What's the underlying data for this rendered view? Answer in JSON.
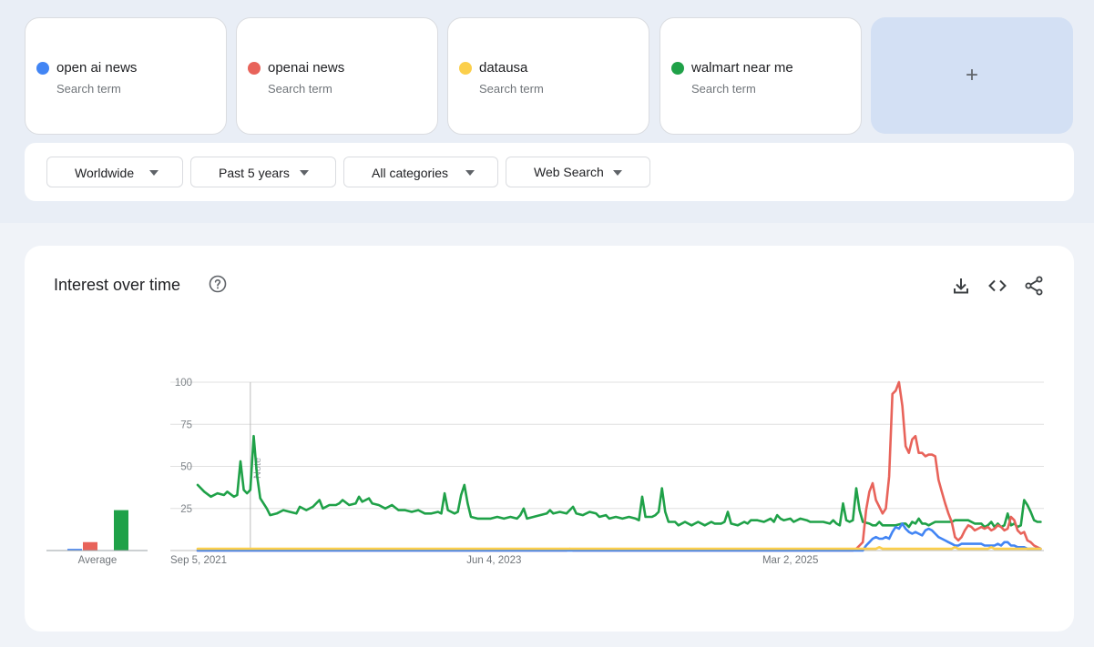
{
  "search_terms": [
    {
      "name": "open ai news",
      "sub": "Search term",
      "color": "#4285f4"
    },
    {
      "name": "openai news",
      "sub": "Search term",
      "color": "#e8635a"
    },
    {
      "name": "datausa",
      "sub": "Search term",
      "color": "#fbcf4b"
    },
    {
      "name": "walmart near me",
      "sub": "Search term",
      "color": "#1fa148"
    }
  ],
  "add_term": {
    "icon": "plus-icon",
    "label": "+"
  },
  "filters": {
    "region": "Worldwide",
    "time_range": "Past 5 years",
    "category": "All categories",
    "search_type": "Web Search"
  },
  "panel": {
    "title": "Interest over time",
    "help_icon": "help-circle-icon",
    "tools": [
      "download-icon",
      "embed-code-icon",
      "share-icon"
    ]
  },
  "chart_data": {
    "type": "line",
    "title": "Interest over time",
    "ylim": [
      0,
      100
    ],
    "yticks": [
      100,
      75,
      50,
      25
    ],
    "xtick_labels": [
      "Sep 5, 2021",
      "Jun 4, 2023",
      "Mar 2, 2025"
    ],
    "xtick_positions": [
      0,
      90,
      180
    ],
    "xlim": [
      0,
      257
    ],
    "grid": true,
    "annotation": {
      "label": "Note",
      "x": 16
    },
    "average": {
      "label": "Average",
      "values": [
        1,
        5,
        24
      ]
    },
    "series": [
      {
        "name": "walmart near me",
        "color": "#1fa148",
        "points": [
          [
            0,
            39
          ],
          [
            2,
            35
          ],
          [
            4,
            32
          ],
          [
            6,
            34
          ],
          [
            8,
            33
          ],
          [
            9,
            35
          ],
          [
            11,
            32
          ],
          [
            12,
            33
          ],
          [
            13,
            53
          ],
          [
            14,
            36
          ],
          [
            15,
            34
          ],
          [
            16,
            36
          ],
          [
            17,
            68
          ],
          [
            18,
            45
          ],
          [
            19,
            31
          ],
          [
            20,
            28
          ],
          [
            21,
            25
          ],
          [
            22,
            21
          ],
          [
            24,
            22
          ],
          [
            26,
            24
          ],
          [
            28,
            23
          ],
          [
            30,
            22
          ],
          [
            31,
            26
          ],
          [
            33,
            24
          ],
          [
            35,
            26
          ],
          [
            37,
            30
          ],
          [
            38,
            25
          ],
          [
            40,
            27
          ],
          [
            42,
            27
          ],
          [
            43,
            28
          ],
          [
            44,
            30
          ],
          [
            46,
            27
          ],
          [
            48,
            28
          ],
          [
            49,
            32
          ],
          [
            50,
            29
          ],
          [
            52,
            31
          ],
          [
            53,
            28
          ],
          [
            55,
            27
          ],
          [
            57,
            25
          ],
          [
            59,
            27
          ],
          [
            61,
            24
          ],
          [
            63,
            24
          ],
          [
            65,
            23
          ],
          [
            67,
            24
          ],
          [
            69,
            22
          ],
          [
            71,
            22
          ],
          [
            73,
            23
          ],
          [
            74,
            22
          ],
          [
            75,
            34
          ],
          [
            76,
            24
          ],
          [
            78,
            22
          ],
          [
            79,
            23
          ],
          [
            80,
            33
          ],
          [
            81,
            39
          ],
          [
            82,
            28
          ],
          [
            83,
            20
          ],
          [
            85,
            19
          ],
          [
            87,
            19
          ],
          [
            89,
            19
          ],
          [
            91,
            20
          ],
          [
            93,
            19
          ],
          [
            95,
            20
          ],
          [
            97,
            19
          ],
          [
            98,
            21
          ],
          [
            99,
            25
          ],
          [
            100,
            19
          ],
          [
            102,
            20
          ],
          [
            104,
            21
          ],
          [
            106,
            22
          ],
          [
            107,
            24
          ],
          [
            108,
            22
          ],
          [
            110,
            23
          ],
          [
            112,
            22
          ],
          [
            114,
            26
          ],
          [
            115,
            22
          ],
          [
            117,
            21
          ],
          [
            119,
            23
          ],
          [
            121,
            22
          ],
          [
            122,
            20
          ],
          [
            124,
            21
          ],
          [
            125,
            19
          ],
          [
            127,
            20
          ],
          [
            129,
            19
          ],
          [
            131,
            20
          ],
          [
            133,
            19
          ],
          [
            134,
            18
          ],
          [
            135,
            32
          ],
          [
            136,
            20
          ],
          [
            138,
            20
          ],
          [
            139,
            21
          ],
          [
            140,
            23
          ],
          [
            141,
            37
          ],
          [
            142,
            23
          ],
          [
            143,
            17
          ],
          [
            145,
            17
          ],
          [
            146,
            15
          ],
          [
            148,
            17
          ],
          [
            150,
            15
          ],
          [
            152,
            17
          ],
          [
            154,
            15
          ],
          [
            156,
            17
          ],
          [
            157,
            16
          ],
          [
            159,
            16
          ],
          [
            160,
            17
          ],
          [
            161,
            23
          ],
          [
            162,
            16
          ],
          [
            164,
            15
          ],
          [
            166,
            17
          ],
          [
            167,
            16
          ],
          [
            168,
            18
          ],
          [
            170,
            18
          ],
          [
            172,
            17
          ],
          [
            173,
            18
          ],
          [
            174,
            19
          ],
          [
            175,
            17
          ],
          [
            176,
            21
          ],
          [
            177,
            19
          ],
          [
            178,
            18
          ],
          [
            180,
            19
          ],
          [
            181,
            17
          ],
          [
            183,
            19
          ],
          [
            185,
            18
          ],
          [
            186,
            17
          ],
          [
            188,
            17
          ],
          [
            190,
            17
          ],
          [
            192,
            16
          ],
          [
            193,
            18
          ],
          [
            194,
            16
          ],
          [
            195,
            15
          ],
          [
            196,
            28
          ],
          [
            197,
            18
          ],
          [
            198,
            17
          ],
          [
            199,
            18
          ],
          [
            200,
            37
          ],
          [
            201,
            24
          ],
          [
            202,
            17
          ],
          [
            204,
            16
          ],
          [
            205,
            15
          ],
          [
            206,
            15
          ],
          [
            207,
            17
          ],
          [
            208,
            15
          ],
          [
            210,
            15
          ],
          [
            212,
            15
          ],
          [
            214,
            16
          ],
          [
            215,
            16
          ],
          [
            216,
            14
          ],
          [
            217,
            17
          ],
          [
            218,
            16
          ],
          [
            219,
            19
          ],
          [
            220,
            16
          ],
          [
            221,
            16
          ],
          [
            222,
            15
          ],
          [
            223,
            16
          ],
          [
            224,
            17
          ],
          [
            226,
            17
          ],
          [
            228,
            17
          ],
          [
            229,
            17
          ],
          [
            230,
            18
          ],
          [
            232,
            18
          ],
          [
            233,
            18
          ],
          [
            234,
            18
          ],
          [
            236,
            16
          ],
          [
            238,
            16
          ],
          [
            239,
            14
          ],
          [
            240,
            15
          ],
          [
            241,
            17
          ],
          [
            242,
            14
          ],
          [
            243,
            16
          ],
          [
            244,
            14
          ],
          [
            245,
            15
          ],
          [
            246,
            22
          ],
          [
            247,
            15
          ],
          [
            248,
            16
          ],
          [
            249,
            14
          ],
          [
            250,
            15
          ],
          [
            251,
            30
          ],
          [
            252,
            27
          ],
          [
            253,
            23
          ],
          [
            254,
            18
          ],
          [
            255,
            17
          ],
          [
            256,
            17
          ]
        ]
      },
      {
        "name": "openai news",
        "color": "#e8635a",
        "points": [
          [
            0,
            0
          ],
          [
            112,
            0
          ],
          [
            113,
            1
          ],
          [
            114,
            0
          ],
          [
            199,
            0
          ],
          [
            200,
            1
          ],
          [
            201,
            3
          ],
          [
            202,
            5
          ],
          [
            203,
            24
          ],
          [
            204,
            35
          ],
          [
            205,
            40
          ],
          [
            206,
            30
          ],
          [
            207,
            26
          ],
          [
            208,
            22
          ],
          [
            209,
            25
          ],
          [
            210,
            44
          ],
          [
            211,
            93
          ],
          [
            212,
            95
          ],
          [
            213,
            100
          ],
          [
            214,
            86
          ],
          [
            215,
            62
          ],
          [
            216,
            58
          ],
          [
            217,
            66
          ],
          [
            218,
            68
          ],
          [
            219,
            58
          ],
          [
            220,
            58
          ],
          [
            221,
            56
          ],
          [
            222,
            57
          ],
          [
            223,
            57
          ],
          [
            224,
            56
          ],
          [
            225,
            42
          ],
          [
            226,
            35
          ],
          [
            227,
            28
          ],
          [
            228,
            22
          ],
          [
            229,
            17
          ],
          [
            230,
            8
          ],
          [
            231,
            6
          ],
          [
            232,
            8
          ],
          [
            233,
            12
          ],
          [
            234,
            15
          ],
          [
            235,
            14
          ],
          [
            236,
            12
          ],
          [
            237,
            13
          ],
          [
            238,
            14
          ],
          [
            239,
            13
          ],
          [
            240,
            14
          ],
          [
            241,
            12
          ],
          [
            242,
            13
          ],
          [
            243,
            15
          ],
          [
            244,
            14
          ],
          [
            245,
            12
          ],
          [
            246,
            13
          ],
          [
            247,
            20
          ],
          [
            248,
            18
          ],
          [
            249,
            12
          ],
          [
            250,
            10
          ],
          [
            251,
            11
          ],
          [
            252,
            6
          ],
          [
            253,
            5
          ],
          [
            254,
            3
          ],
          [
            255,
            2
          ],
          [
            256,
            1
          ]
        ]
      },
      {
        "name": "open ai news",
        "color": "#4285f4",
        "points": [
          [
            0,
            0
          ],
          [
            202,
            0
          ],
          [
            203,
            3
          ],
          [
            204,
            5
          ],
          [
            205,
            7
          ],
          [
            206,
            8
          ],
          [
            207,
            7
          ],
          [
            208,
            7
          ],
          [
            209,
            8
          ],
          [
            210,
            7
          ],
          [
            211,
            11
          ],
          [
            212,
            14
          ],
          [
            213,
            13
          ],
          [
            214,
            16
          ],
          [
            215,
            13
          ],
          [
            216,
            11
          ],
          [
            217,
            10
          ],
          [
            218,
            11
          ],
          [
            219,
            10
          ],
          [
            220,
            9
          ],
          [
            221,
            12
          ],
          [
            222,
            13
          ],
          [
            223,
            12
          ],
          [
            224,
            10
          ],
          [
            225,
            8
          ],
          [
            226,
            7
          ],
          [
            227,
            6
          ],
          [
            228,
            5
          ],
          [
            229,
            4
          ],
          [
            230,
            3
          ],
          [
            231,
            3
          ],
          [
            232,
            4
          ],
          [
            233,
            4
          ],
          [
            234,
            4
          ],
          [
            235,
            4
          ],
          [
            236,
            4
          ],
          [
            237,
            4
          ],
          [
            238,
            4
          ],
          [
            239,
            3
          ],
          [
            240,
            3
          ],
          [
            241,
            3
          ],
          [
            242,
            3
          ],
          [
            243,
            4
          ],
          [
            244,
            3
          ],
          [
            245,
            5
          ],
          [
            246,
            5
          ],
          [
            247,
            3
          ],
          [
            248,
            3
          ],
          [
            249,
            2
          ],
          [
            250,
            2
          ],
          [
            251,
            2
          ],
          [
            252,
            1
          ],
          [
            253,
            1
          ],
          [
            254,
            1
          ],
          [
            255,
            1
          ],
          [
            256,
            1
          ]
        ]
      },
      {
        "name": "datausa",
        "color": "#fbcf4b",
        "points": [
          [
            0,
            1
          ],
          [
            205,
            1
          ],
          [
            206,
            1
          ],
          [
            207,
            2
          ],
          [
            208,
            1
          ],
          [
            229,
            1
          ],
          [
            230,
            2
          ],
          [
            231,
            1
          ],
          [
            240,
            1
          ],
          [
            241,
            2
          ],
          [
            242,
            1
          ],
          [
            256,
            1
          ]
        ]
      }
    ]
  }
}
